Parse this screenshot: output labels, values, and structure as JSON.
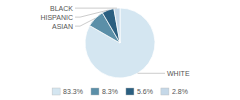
{
  "chart_data": {
    "type": "pie",
    "categories": [
      "WHITE",
      "ASIAN",
      "HISPANIC",
      "BLACK"
    ],
    "values": [
      83.3,
      8.3,
      5.6,
      2.8
    ],
    "value_labels": [
      "83.3%",
      "8.3%",
      "5.6%",
      "2.8%"
    ],
    "colors": [
      "#d4e6f1",
      "#5b8fa8",
      "#2b5f80",
      "#c5d8e8"
    ],
    "legend": "bottom"
  }
}
